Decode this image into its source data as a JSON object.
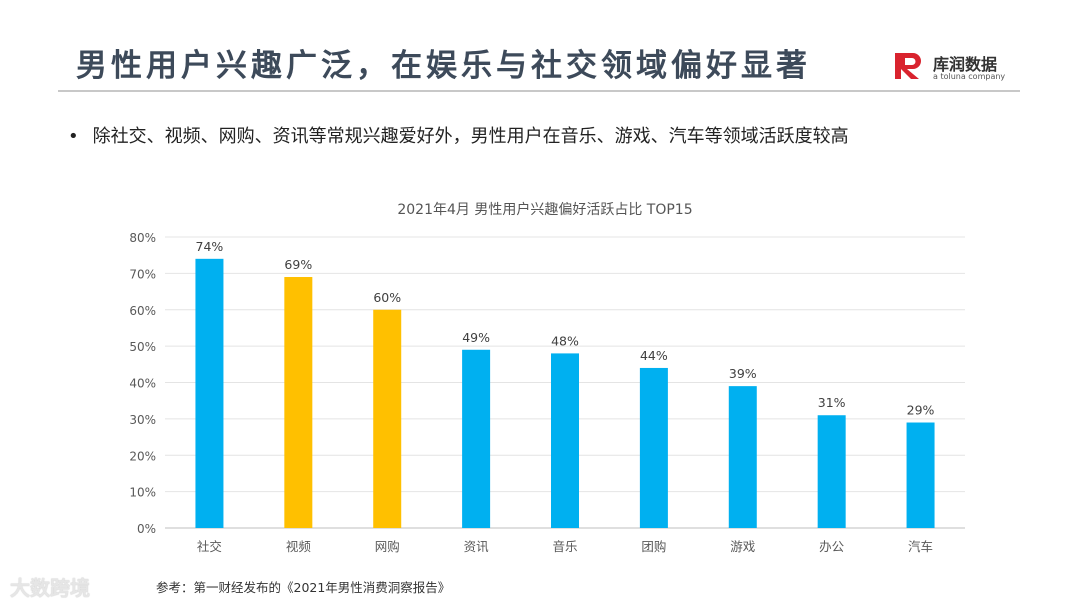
{
  "header": {
    "title": "男性用户兴趣广泛，在娱乐与社交领域偏好显著",
    "logo_name": "库润数据",
    "logo_sub": "a toluna company"
  },
  "bullet": "除社交、视频、网购、资讯等常规兴趣爱好外，男性用户在音乐、游戏、汽车等领域活跃度较高",
  "footer": {
    "source": "参考：第一财经发布的《2021年男性消费洞察报告》",
    "watermark": "大数跨境"
  },
  "colors": {
    "blue": "#00b0f0",
    "gold": "#ffc000",
    "title": "#3d4a5a"
  },
  "chart_data": {
    "type": "bar",
    "title": "2021年4月  男性用户兴趣偏好活跃占比  TOP15",
    "categories": [
      "社交",
      "视频",
      "网购",
      "资讯",
      "音乐",
      "团购",
      "游戏",
      "办公",
      "汽车"
    ],
    "values": [
      74,
      69,
      60,
      49,
      48,
      44,
      39,
      31,
      29
    ],
    "data_labels": [
      "74%",
      "69%",
      "60%",
      "49%",
      "48%",
      "44%",
      "39%",
      "31%",
      "29%"
    ],
    "bar_colors": [
      "#00b0f0",
      "#ffc000",
      "#ffc000",
      "#00b0f0",
      "#00b0f0",
      "#00b0f0",
      "#00b0f0",
      "#00b0f0",
      "#00b0f0"
    ],
    "yticks": [
      "0%",
      "10%",
      "20%",
      "30%",
      "40%",
      "50%",
      "60%",
      "70%",
      "80%"
    ],
    "ylim": [
      0,
      80
    ],
    "grid": true,
    "legend": "none"
  }
}
